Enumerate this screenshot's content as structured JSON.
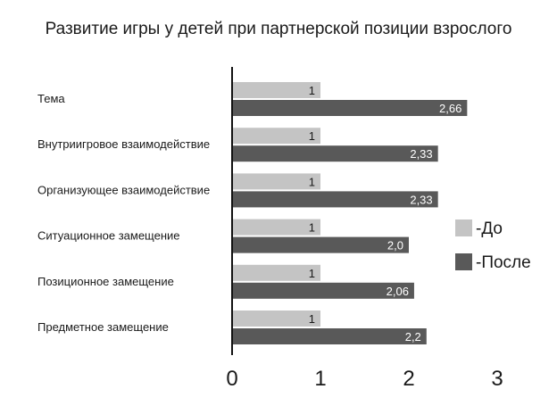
{
  "chart_data": {
    "type": "bar",
    "orientation": "horizontal",
    "title": "Развитие игры у детей при партнерской позиции взрослого",
    "categories": [
      "Тема",
      "Внутриигровое взаимодействие",
      "Организующее взаимодействие",
      "Ситуационное замещение",
      "Позиционное замещение",
      "Предметное замещение"
    ],
    "series": [
      {
        "name": "-До",
        "color": "#c4c4c4",
        "values": [
          1,
          1,
          1,
          1,
          1,
          1
        ],
        "labels": [
          "1",
          "1",
          "1",
          "1",
          "1",
          "1"
        ]
      },
      {
        "name": "-После",
        "color": "#595959",
        "values": [
          2.66,
          2.33,
          2.33,
          2.0,
          2.06,
          2.2
        ],
        "labels": [
          "2,66",
          "2,33",
          "2,33",
          "2,0",
          "2,06",
          "2,2"
        ]
      }
    ],
    "xlim": [
      0,
      3
    ],
    "xticks": [
      "0",
      "1",
      "2",
      "3"
    ],
    "grid": false,
    "legend_position": "right"
  }
}
